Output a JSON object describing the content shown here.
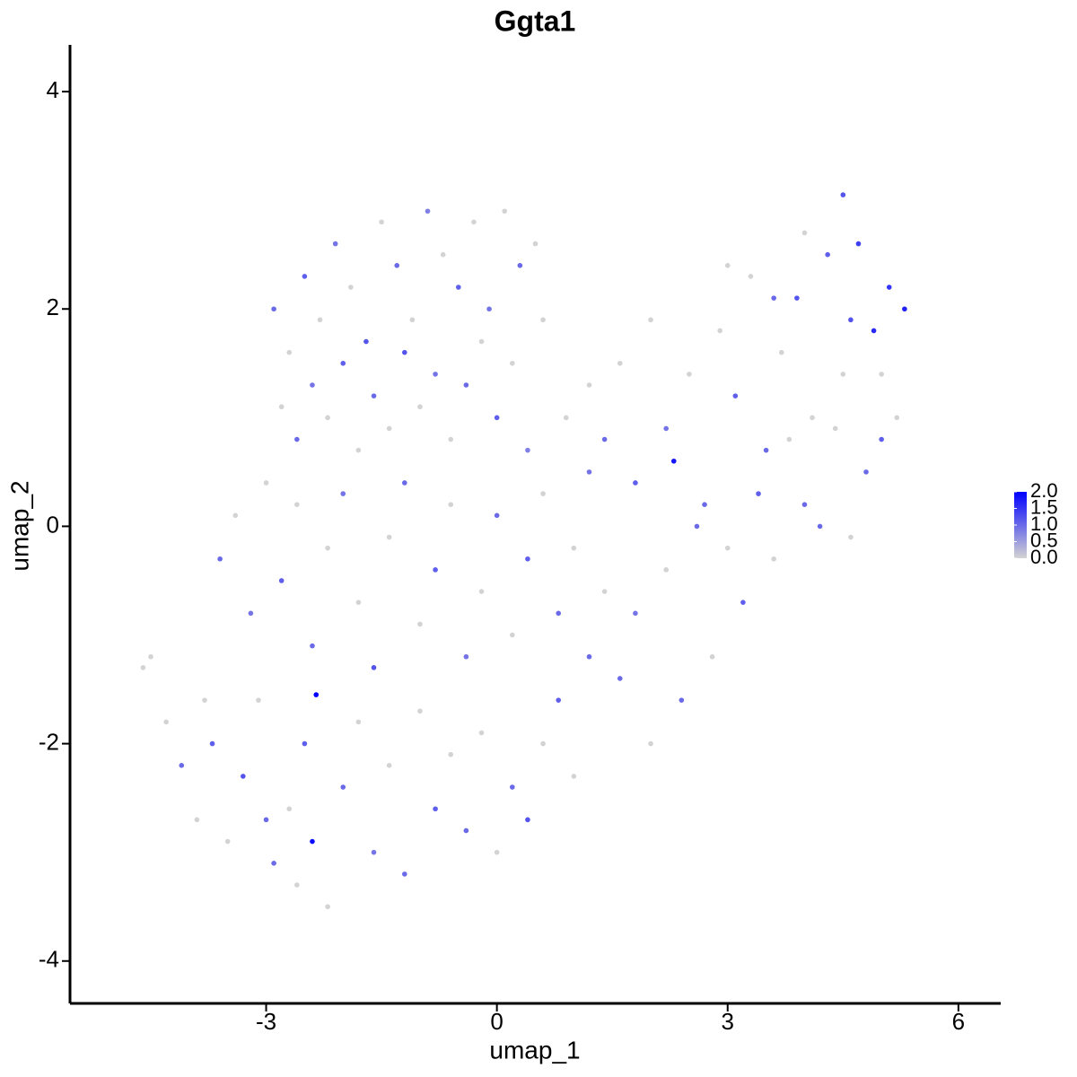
{
  "chart_data": {
    "type": "scatter",
    "title": "Ggta1",
    "x_label": "umap_1",
    "y_label": "umap_2",
    "xlim": [
      -5.55,
      6.55
    ],
    "ylim": [
      -4.39,
      4.43
    ],
    "xticks": [
      -3,
      0,
      3,
      6
    ],
    "yticks": [
      -4,
      -2,
      0,
      2,
      4
    ],
    "low_color": "#d3d3d3",
    "high_color": "#0000ff",
    "colorlim": [
      0,
      2
    ],
    "colorticks": [
      {
        "value": 0,
        "label": "0.0"
      },
      0.5,
      {
        "value": 1,
        "label": "1.0"
      },
      1.5,
      {
        "value": 2,
        "label": "2.0"
      }
    ],
    "x": [
      -2.9,
      -2.7,
      -2.5,
      -2.3,
      -2.1,
      -1.9,
      -1.7,
      -1.5,
      -1.3,
      -1.1,
      -0.9,
      -0.7,
      -0.5,
      -0.3,
      -0.1,
      0.1,
      0.3,
      0.5,
      -2.8,
      -2.6,
      -2.4,
      -2.2,
      -2.0,
      -1.8,
      -1.6,
      -1.4,
      -1.2,
      -1.0,
      -0.8,
      -0.6,
      -0.4,
      -0.2,
      0.0,
      0.2,
      0.4,
      0.6,
      -3.6,
      -3.4,
      -3.2,
      -3.0,
      -2.8,
      -2.6,
      -2.4,
      -2.2,
      -2.0,
      -1.8,
      -1.6,
      -1.4,
      -1.2,
      -1.0,
      -0.8,
      -0.6,
      -0.4,
      -0.2,
      0.0,
      0.2,
      0.4,
      0.6,
      0.8,
      1.0,
      1.2,
      -4.6,
      -4.5,
      -4.3,
      -4.1,
      -3.9,
      -3.7,
      -3.5,
      -3.3,
      -3.1,
      -2.9,
      -2.7,
      -2.5,
      -2.4,
      -2.35,
      -2.2,
      -2.0,
      -1.8,
      -1.6,
      -1.4,
      -1.2,
      -1.0,
      -0.8,
      -0.6,
      -0.4,
      -0.2,
      0.0,
      0.2,
      0.4,
      0.6,
      0.8,
      1.0,
      -3.8,
      -3.0,
      -2.6,
      1.2,
      1.4,
      1.6,
      1.8,
      2.0,
      2.2,
      2.3,
      2.5,
      2.7,
      2.9,
      3.1,
      3.3,
      3.5,
      3.7,
      3.9,
      4.1,
      4.3,
      4.5,
      4.5,
      4.7,
      4.9,
      5.1,
      5.3,
      5.2,
      4.8,
      4.4,
      4.0,
      3.6,
      3.2,
      2.8,
      2.4,
      2.0,
      1.6,
      1.4,
      1.8,
      2.2,
      2.6,
      3.0,
      3.4,
      3.8,
      4.2,
      4.6,
      5.0,
      3.0,
      3.6,
      4.0,
      4.6,
      5.0,
      1.2,
      0.9
    ],
    "y": [
      2.0,
      1.6,
      2.3,
      1.9,
      2.6,
      2.2,
      1.7,
      2.8,
      2.4,
      1.9,
      2.9,
      2.5,
      2.2,
      2.8,
      2.0,
      2.9,
      2.4,
      2.6,
      1.1,
      0.8,
      1.3,
      1.0,
      1.5,
      0.7,
      1.2,
      0.9,
      1.6,
      1.1,
      1.4,
      0.8,
      1.3,
      1.7,
      1.0,
      1.5,
      0.7,
      1.9,
      -0.3,
      0.1,
      -0.8,
      0.4,
      -0.5,
      0.2,
      -1.1,
      -0.2,
      0.3,
      -0.7,
      -1.3,
      -0.1,
      0.4,
      -0.9,
      -0.4,
      0.2,
      -1.2,
      -0.6,
      0.1,
      -1.0,
      -0.3,
      0.3,
      -0.8,
      -0.2,
      0.5,
      -1.3,
      -1.2,
      -1.8,
      -2.2,
      -2.7,
      -2.0,
      -2.9,
      -2.3,
      -1.6,
      -3.1,
      -2.6,
      -2.0,
      -2.9,
      -1.55,
      -3.5,
      -2.4,
      -1.8,
      -3.0,
      -2.2,
      -3.2,
      -1.7,
      -2.6,
      -2.1,
      -2.8,
      -1.9,
      -3.0,
      -2.4,
      -2.7,
      -2.0,
      -1.6,
      -2.3,
      -1.6,
      -2.7,
      -3.3,
      1.3,
      0.8,
      1.5,
      0.4,
      1.9,
      0.9,
      0.6,
      1.4,
      0.2,
      1.8,
      1.2,
      2.3,
      0.7,
      1.6,
      2.1,
      1.0,
      2.5,
      1.4,
      3.05,
      2.6,
      1.8,
      2.2,
      2.0,
      1.0,
      0.5,
      0.9,
      0.2,
      -0.3,
      -0.7,
      -1.2,
      -1.6,
      -2.0,
      -1.4,
      -0.6,
      -0.8,
      -0.4,
      0.0,
      -0.2,
      0.3,
      0.8,
      0.0,
      -0.1,
      0.8,
      2.4,
      2.1,
      2.7,
      1.9,
      1.4,
      -1.2,
      1.0
    ],
    "values": [
      1.0,
      0,
      1.1,
      0,
      0.9,
      0,
      1.2,
      0,
      1.0,
      0,
      0.8,
      0,
      1.1,
      0,
      0.9,
      0,
      1.0,
      0,
      0,
      1.0,
      0.9,
      0,
      1.1,
      0,
      1.0,
      0,
      1.2,
      0,
      0.9,
      0,
      1.0,
      0,
      1.1,
      0,
      0.8,
      0,
      1.0,
      0,
      0.9,
      0,
      1.1,
      0,
      1.0,
      0,
      0.9,
      0,
      1.2,
      0,
      1.0,
      0,
      1.1,
      0,
      0.9,
      0,
      1.0,
      0,
      1.1,
      0,
      1.0,
      0,
      0.9,
      0,
      0,
      0,
      1.0,
      0,
      1.1,
      0,
      1.2,
      0,
      1.0,
      0,
      1.1,
      1.9,
      2.0,
      0,
      1.0,
      0,
      0.9,
      0,
      1.0,
      0,
      1.1,
      0,
      1.0,
      0,
      0,
      1.0,
      1.2,
      0,
      1.1,
      0,
      0,
      1.0,
      0,
      0,
      1.0,
      0,
      1.1,
      0,
      0.9,
      1.8,
      0,
      1.0,
      0,
      1.1,
      0,
      1.0,
      0,
      1.2,
      0,
      1.1,
      0,
      1.2,
      1.4,
      1.6,
      1.5,
      1.7,
      0,
      1.0,
      0,
      1.0,
      0,
      1.1,
      0,
      1.0,
      0,
      1.0,
      0,
      0.9,
      0,
      1.0,
      0,
      1.1,
      0,
      1.0,
      0,
      1.1,
      0,
      1.0,
      0,
      1.2,
      0,
      1.0,
      0
    ]
  }
}
